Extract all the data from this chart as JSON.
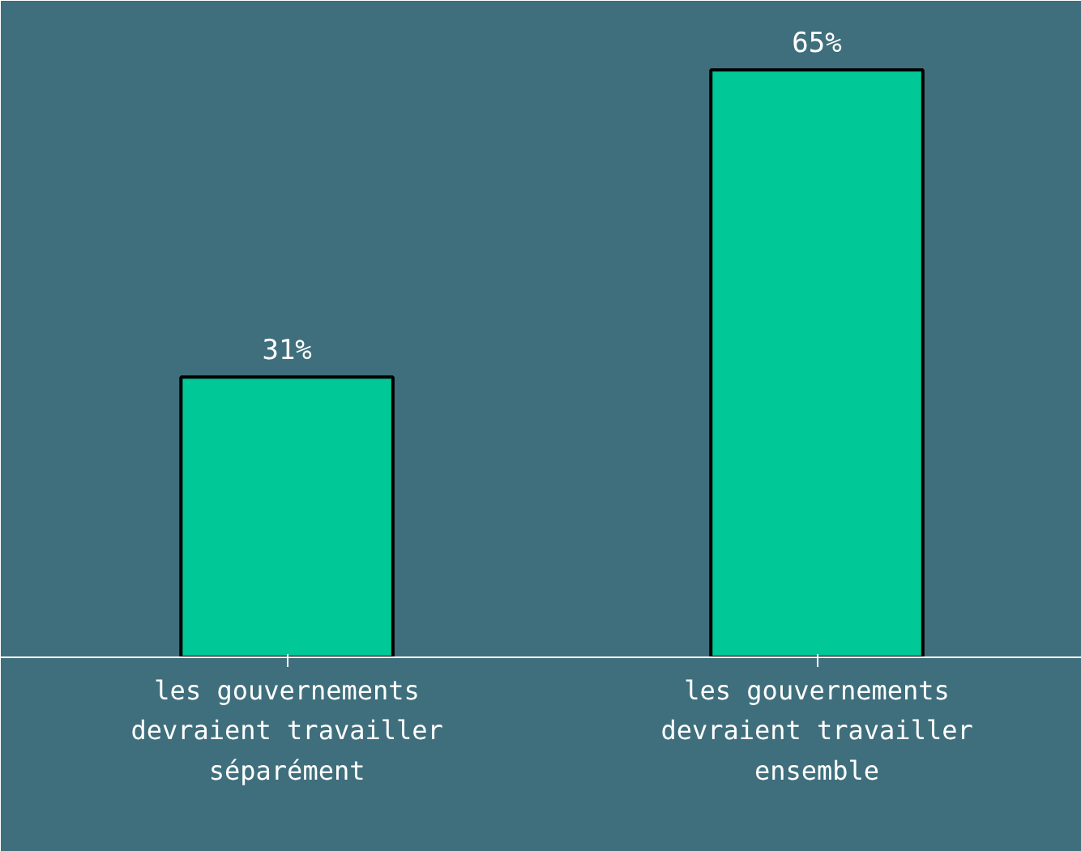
{
  "chart_data": {
    "type": "bar",
    "categories": [
      "les gouvernements devraient travailler séparément",
      "les gouvernements devraient travailler ensemble"
    ],
    "values": [
      31,
      65
    ],
    "value_labels": [
      "31%",
      "65%"
    ],
    "color": "#00c896",
    "tick_labels": "x"
  }
}
